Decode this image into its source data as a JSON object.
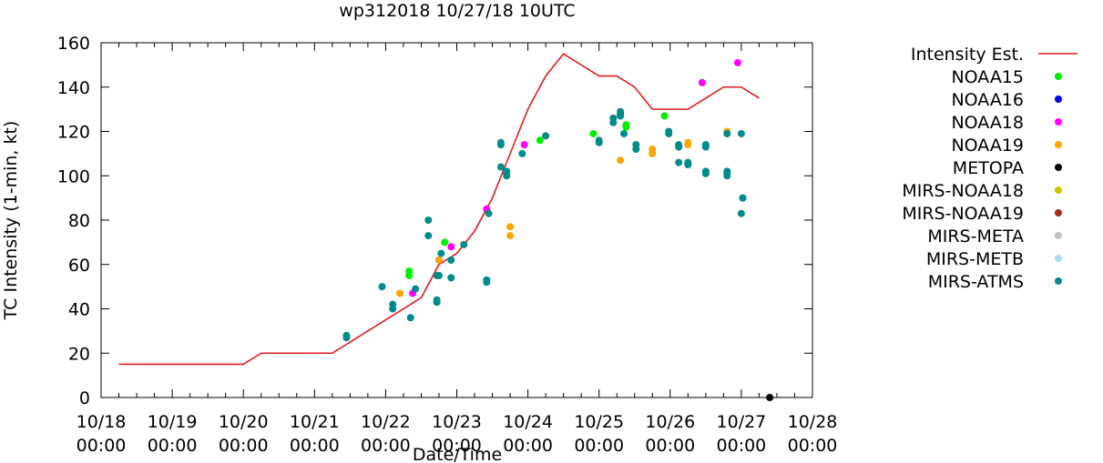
{
  "chart_data": {
    "type": "scatter",
    "title": "wp312018 10/27/18 10UTC",
    "xlabel": "Date/Time",
    "ylabel": "TC Intensity (1-min, kt)",
    "xlim": [
      0,
      10
    ],
    "ylim": [
      0,
      160
    ],
    "x_ticks": [
      {
        "value": 0,
        "date": "10/18",
        "time": "00:00"
      },
      {
        "value": 1,
        "date": "10/19",
        "time": "00:00"
      },
      {
        "value": 2,
        "date": "10/20",
        "time": "00:00"
      },
      {
        "value": 3,
        "date": "10/21",
        "time": "00:00"
      },
      {
        "value": 4,
        "date": "10/22",
        "time": "00:00"
      },
      {
        "value": 5,
        "date": "10/23",
        "time": "00:00"
      },
      {
        "value": 6,
        "date": "10/24",
        "time": "00:00"
      },
      {
        "value": 7,
        "date": "10/25",
        "time": "00:00"
      },
      {
        "value": 8,
        "date": "10/26",
        "time": "00:00"
      },
      {
        "value": 9,
        "date": "10/27",
        "time": "00:00"
      },
      {
        "value": 10,
        "date": "10/28",
        "time": "00:00"
      }
    ],
    "y_ticks": [
      "0",
      "20",
      "40",
      "60",
      "80",
      "100",
      "120",
      "140",
      "160"
    ],
    "x_unit_note": "x values are days since 10/18 00:00",
    "intensity_line": {
      "name": "Intensity Est.",
      "color": "#e41a1c",
      "x": [
        0.25,
        2.0,
        2.25,
        3.0,
        3.25,
        3.5,
        4.0,
        4.5,
        4.75,
        5.0,
        5.25,
        5.5,
        5.75,
        6.0,
        6.25,
        6.5,
        6.75,
        7.0,
        7.25,
        7.5,
        7.75,
        8.0,
        8.25,
        8.5,
        8.75,
        9.0,
        9.25
      ],
      "y": [
        15,
        15,
        20,
        20,
        20,
        25,
        35,
        45,
        60,
        65,
        75,
        90,
        110,
        130,
        145,
        155,
        150,
        145,
        145,
        140,
        130,
        130,
        130,
        135,
        140,
        140,
        135
      ]
    },
    "series": [
      {
        "name": "NOAA15",
        "color": "#00ee00",
        "x": [
          4.33,
          4.33,
          4.83,
          6.17,
          6.92,
          7.38,
          7.38,
          7.92
        ],
        "y": [
          55,
          57,
          70,
          116,
          119,
          122,
          123,
          127
        ]
      },
      {
        "name": "NOAA16",
        "color": "#0000e0",
        "x": [],
        "y": []
      },
      {
        "name": "NOAA18",
        "color": "#ff00ff",
        "x": [
          4.38,
          4.92,
          5.42,
          5.95,
          8.45,
          8.95
        ],
        "y": [
          47,
          68,
          85,
          114,
          142,
          151
        ]
      },
      {
        "name": "NOAA19",
        "color": "#ffa500",
        "x": [
          4.2,
          4.75,
          5.75,
          5.75,
          7.3,
          7.75,
          7.75,
          8.25,
          8.25,
          8.8,
          8.8
        ],
        "y": [
          47,
          62,
          77,
          73,
          107,
          110,
          112,
          114,
          115,
          119,
          120
        ]
      },
      {
        "name": "METOPA",
        "color": "#000000",
        "x": [
          9.4
        ],
        "y": [
          0
        ]
      },
      {
        "name": "MIRS-NOAA18",
        "color": "#c8c800",
        "x": [],
        "y": []
      },
      {
        "name": "MIRS-NOAA19",
        "color": "#a52a2a",
        "x": [],
        "y": []
      },
      {
        "name": "MIRS-META",
        "color": "#c0c0c0",
        "x": [],
        "y": []
      },
      {
        "name": "MIRS-METB",
        "color": "#add8e6",
        "x": [],
        "y": []
      },
      {
        "name": "MIRS-ATMS",
        "color": "#008b8b",
        "x": [
          3.45,
          3.45,
          3.95,
          4.1,
          4.1,
          4.35,
          4.42,
          4.6,
          4.6,
          4.72,
          4.72,
          4.72,
          4.75,
          4.78,
          4.92,
          4.92,
          5.1,
          5.42,
          5.42,
          5.45,
          5.62,
          5.62,
          5.62,
          5.7,
          5.7,
          5.7,
          5.92,
          6.25,
          7.0,
          7.0,
          7.2,
          7.2,
          7.3,
          7.3,
          7.3,
          7.35,
          7.52,
          7.52,
          7.98,
          7.98,
          8.12,
          8.12,
          8.12,
          8.25,
          8.25,
          8.5,
          8.5,
          8.5,
          8.5,
          8.8,
          8.8,
          8.8,
          8.8,
          9.0,
          9.0,
          9.02,
          9.02
        ],
        "y": [
          27,
          28,
          50,
          40,
          42,
          36,
          49,
          73,
          80,
          43,
          44,
          55,
          55,
          65,
          54,
          62,
          69,
          52,
          53,
          83,
          104,
          114,
          115,
          100,
          101,
          102,
          110,
          118,
          115,
          116,
          124,
          126,
          127,
          128,
          129,
          119,
          112,
          114,
          119,
          120,
          106,
          113,
          114,
          105,
          106,
          101,
          102,
          113,
          114,
          100,
          101,
          102,
          119,
          83,
          119,
          90,
          90
        ]
      }
    ],
    "legend": {
      "placement": "right",
      "entries": [
        "Intensity Est.",
        "NOAA15",
        "NOAA16",
        "NOAA18",
        "NOAA19",
        "METOPA",
        "MIRS-NOAA18",
        "MIRS-NOAA19",
        "MIRS-META",
        "MIRS-METB",
        "MIRS-ATMS"
      ]
    },
    "grid": false
  }
}
